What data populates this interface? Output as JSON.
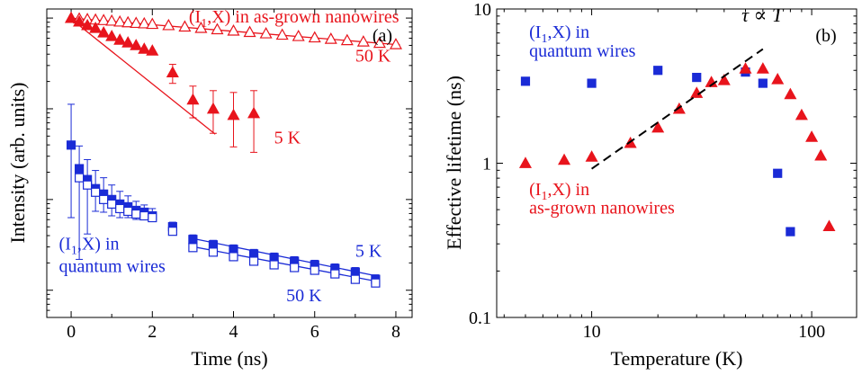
{
  "colors": {
    "red": "#e8141c",
    "blue": "#1a2bd6",
    "black": "#000000"
  },
  "chart_data": [
    {
      "type": "scatter",
      "panel_label": "(a)",
      "xlabel": "Time (ns)",
      "ylabel": "Intensity (arb. units)",
      "xlim": [
        -0.6,
        8.4
      ],
      "ylim_log": [
        -3.3,
        0.1
      ],
      "y_scale": "log",
      "x_ticks": [
        0,
        2,
        4,
        6,
        8
      ],
      "x_tick_labels": [
        "0",
        "2",
        "4",
        "6",
        "8"
      ],
      "y_ticks_log": [
        -3,
        -2,
        -1,
        0
      ],
      "grid": false,
      "series": [
        {
          "name": "50 K",
          "color": "red",
          "marker": "open-triangle",
          "x": [
            0,
            0.2,
            0.4,
            0.6,
            0.8,
            1.0,
            1.2,
            1.4,
            1.6,
            1.8,
            2.0,
            2.4,
            2.8,
            3.2,
            3.6,
            4.0,
            4.4,
            4.8,
            5.2,
            5.6,
            6.0,
            6.4,
            6.8,
            7.2,
            7.6,
            8.0
          ],
          "y_log": [
            0.0,
            -0.006,
            -0.012,
            -0.018,
            -0.024,
            -0.03,
            -0.04,
            -0.048,
            -0.055,
            -0.06,
            -0.066,
            -0.08,
            -0.095,
            -0.11,
            -0.125,
            -0.14,
            -0.155,
            -0.17,
            -0.185,
            -0.2,
            -0.215,
            -0.23,
            -0.245,
            -0.26,
            -0.275,
            -0.29
          ],
          "fit": {
            "x": [
              0,
              8.1
            ],
            "y_log": [
              0.0,
              -0.295
            ]
          }
        },
        {
          "name": "5 K",
          "color": "red",
          "marker": "filled-triangle",
          "x": [
            0,
            0.2,
            0.4,
            0.6,
            0.8,
            1.0,
            1.2,
            1.4,
            1.6,
            1.8,
            2.0,
            2.5,
            3.0,
            3.5,
            4.0,
            4.5
          ],
          "y_log": [
            0.0,
            -0.04,
            -0.08,
            -0.11,
            -0.16,
            -0.2,
            -0.24,
            -0.27,
            -0.3,
            -0.34,
            -0.36,
            -0.6,
            -0.9,
            -1.0,
            -1.07,
            -1.05
          ],
          "err_up_log": [
            0,
            0,
            0,
            0,
            0,
            0,
            0,
            0,
            0,
            0,
            0,
            0.09,
            0.15,
            0.2,
            0.25,
            0.25
          ],
          "err_dn_log": [
            0,
            0,
            0,
            0,
            0,
            0,
            0,
            0,
            0,
            0,
            0,
            0.12,
            0.2,
            0.27,
            0.35,
            0.43
          ],
          "fit": {
            "x": [
              0,
              3.55
            ],
            "y_log": [
              -0.01,
              -1.28
            ]
          }
        },
        {
          "name": "5 K",
          "color": "blue",
          "marker": "filled-square",
          "x": [
            0,
            0.2,
            0.4,
            0.6,
            0.8,
            1.0,
            1.2,
            1.4,
            1.6,
            1.8,
            2.0,
            2.5,
            3.0,
            3.5,
            4.0,
            4.5,
            5.0,
            5.5,
            6.0,
            6.5,
            7.0,
            7.5
          ],
          "y_log": [
            -1.4,
            -1.66,
            -1.78,
            -1.88,
            -1.94,
            -2.0,
            -2.05,
            -2.08,
            -2.12,
            -2.14,
            -2.18,
            -2.3,
            -2.44,
            -2.5,
            -2.55,
            -2.6,
            -2.64,
            -2.68,
            -2.72,
            -2.76,
            -2.8,
            -2.88
          ],
          "err_up_log": [
            0.45,
            0.25,
            0.22,
            0.2,
            0.18,
            0.16,
            0.14,
            0.12,
            0.1,
            0.08,
            0.08,
            0.05,
            0.05,
            0.05,
            0.05,
            0.05,
            0.05,
            0.05,
            0.05,
            0.05,
            0.05,
            0.05
          ],
          "err_dn_log": [
            0.8,
            1.0,
            0.6,
            0.25,
            0.2,
            0.18,
            0.15,
            0.12,
            0.1,
            0.08,
            0.06,
            0.05,
            0.05,
            0.05,
            0.05,
            0.05,
            0.05,
            0.05,
            0.05,
            0.05,
            0.05,
            0.05
          ],
          "fit": {
            "x": [
              3.0,
              7.5
            ],
            "y_log": [
              -2.43,
              -2.84
            ]
          }
        },
        {
          "name": "50 K",
          "color": "blue",
          "marker": "open-square",
          "x": [
            0.2,
            0.4,
            0.6,
            0.8,
            1.0,
            1.2,
            1.4,
            1.6,
            1.8,
            2.0,
            2.5,
            3.0,
            3.5,
            4.0,
            4.5,
            5.0,
            5.5,
            6.0,
            6.5,
            7.0,
            7.5
          ],
          "y_log": [
            -1.76,
            -1.84,
            -1.92,
            -2.0,
            -2.05,
            -2.1,
            -2.13,
            -2.16,
            -2.18,
            -2.2,
            -2.35,
            -2.53,
            -2.58,
            -2.63,
            -2.68,
            -2.72,
            -2.75,
            -2.78,
            -2.82,
            -2.88,
            -2.92
          ],
          "fit": {
            "x": [
              3.0,
              7.5
            ],
            "y_log": [
              -2.52,
              -2.9
            ]
          }
        }
      ],
      "annotations": [
        {
          "text_main": "(I",
          "text_sub": "1",
          "text_tail": ",X) in as-grown nanowires",
          "color": "red",
          "at": [
            2.9,
            -0.05
          ]
        },
        {
          "text": "50 K",
          "color": "red",
          "at": [
            7.0,
            -0.48
          ]
        },
        {
          "text": "5 K",
          "color": "red",
          "at": [
            5.0,
            -1.38
          ]
        },
        {
          "text": "5 K",
          "color": "blue",
          "at": [
            7.0,
            -2.63
          ]
        },
        {
          "text": "50 K",
          "color": "blue",
          "at": [
            5.3,
            -3.12
          ]
        },
        {
          "text_main": "(I",
          "text_sub": "1",
          "text_tail": ",X) in",
          "color": "blue",
          "at": [
            -0.3,
            -2.55
          ]
        },
        {
          "text": "quantum wires",
          "color": "blue",
          "at": [
            -0.3,
            -2.8
          ]
        }
      ]
    },
    {
      "type": "scatter",
      "panel_label": "(b)",
      "xlabel": "Temperature (K)",
      "ylabel": "Effective lifetime (ns)",
      "x_scale": "log",
      "y_scale": "log",
      "xlim": [
        3.7,
        160
      ],
      "ylim": [
        0.1,
        10
      ],
      "x_ticks": [
        10,
        100
      ],
      "x_tick_labels": [
        "10",
        "100"
      ],
      "y_ticks": [
        0.1,
        1,
        10
      ],
      "y_tick_labels": [
        "0.1",
        "1",
        "10"
      ],
      "grid": false,
      "series": [
        {
          "name": "(I1,X) in quantum wires",
          "color": "blue",
          "marker": "filled-square",
          "x": [
            5,
            10,
            20,
            30,
            50,
            60,
            70,
            80
          ],
          "y": [
            3.4,
            3.3,
            4.0,
            3.6,
            3.9,
            3.3,
            0.86,
            0.36
          ]
        },
        {
          "name": "(I1,X) in as-grown nanowires",
          "color": "red",
          "marker": "filled-triangle",
          "x": [
            5,
            7.5,
            10,
            15,
            20,
            25,
            30,
            35,
            40,
            50,
            60,
            70,
            80,
            90,
            100,
            110,
            120
          ],
          "y": [
            1.0,
            1.05,
            1.1,
            1.35,
            1.7,
            2.25,
            2.85,
            3.35,
            3.45,
            4.1,
            4.1,
            3.5,
            2.8,
            2.05,
            1.48,
            1.12,
            0.39
          ]
        },
        {
          "name": "τ ∝ T",
          "color": "black",
          "line": "dashed",
          "x": [
            10,
            60
          ],
          "y": [
            0.92,
            5.5
          ]
        }
      ],
      "annotations": [
        {
          "text": "τ ∝ T",
          "color": "black",
          "at": [
            48,
            8.3
          ]
        },
        {
          "text_main": "(I",
          "text_sub": "1",
          "text_tail": ",X) in",
          "color": "blue",
          "at": [
            5.2,
            6.5
          ]
        },
        {
          "text": "quantum wires",
          "color": "blue",
          "at": [
            5.2,
            4.9
          ]
        },
        {
          "text_main": "(I",
          "text_sub": "1",
          "text_tail": ",X) in",
          "color": "red",
          "at": [
            5.2,
            0.62
          ]
        },
        {
          "text": "as-grown nanowires",
          "color": "red",
          "at": [
            5.2,
            0.47
          ]
        }
      ]
    }
  ]
}
